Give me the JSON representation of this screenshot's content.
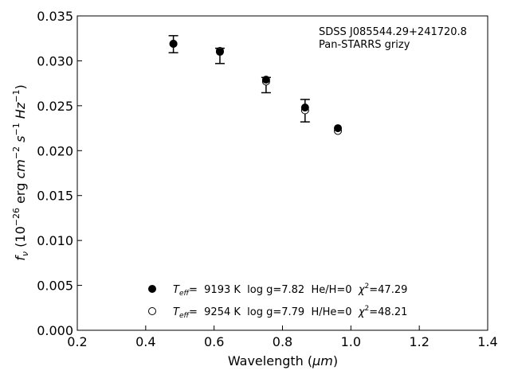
{
  "chart_data": {
    "type": "scatter",
    "xlabel_text": "Wavelength (",
    "xlabel_unit": "μm",
    "xlabel_close": ")",
    "ylabel_f": "f",
    "ylabel_sub": "ν",
    "ylabel_p1": " (10",
    "ylabel_exp1": "−26",
    "ylabel_p2": " erg ",
    "ylabel_cm": "cm",
    "ylabel_exp2": "−2",
    "ylabel_s": " s",
    "ylabel_exp3": "−1",
    "ylabel_hz": " Hz",
    "ylabel_exp4": "−1",
    "ylabel_close": ")",
    "xlim": [
      0.2,
      1.4
    ],
    "ylim": [
      0.0,
      0.035
    ],
    "xticks": [
      "0.2",
      "0.4",
      "0.6",
      "0.8",
      "1.0",
      "1.2",
      "1.4"
    ],
    "yticks": [
      "0.000",
      "0.005",
      "0.010",
      "0.015",
      "0.020",
      "0.025",
      "0.030",
      "0.035"
    ],
    "annotation_line1": "SDSS J085544.29+241720.8",
    "annotation_line2": "Pan-STARRS grizy",
    "observed": {
      "x": [
        0.481,
        0.617,
        0.752,
        0.866,
        0.962
      ],
      "y": [
        0.03185,
        0.03055,
        0.0273,
        0.02445,
        0.0225
      ],
      "err": [
        0.00095,
        0.00085,
        0.00085,
        0.00125,
        0.0
      ]
    },
    "series": [
      {
        "marker": "filled-circle",
        "t_sym": "T",
        "t_sub": "eff",
        "text1": "=  9193 K  log g=7.82  He/H=0  ",
        "chi_sym": "χ",
        "chi_exp": "2",
        "text2": "=47.29",
        "x": [
          0.481,
          0.617,
          0.752,
          0.866,
          0.962
        ],
        "y": [
          0.0319,
          0.031,
          0.0279,
          0.0248,
          0.0225
        ]
      },
      {
        "marker": "open-circle",
        "t_sym": "T",
        "t_sub": "eff",
        "text1": "=  9254 K  log g=7.79  H/He=0  ",
        "chi_sym": "χ",
        "chi_exp": "2",
        "text2": "=48.21",
        "x": [
          0.481,
          0.617,
          0.752,
          0.866,
          0.962
        ],
        "y": [
          0.0319,
          0.0311,
          0.0277,
          0.0245,
          0.0222
        ]
      }
    ]
  }
}
